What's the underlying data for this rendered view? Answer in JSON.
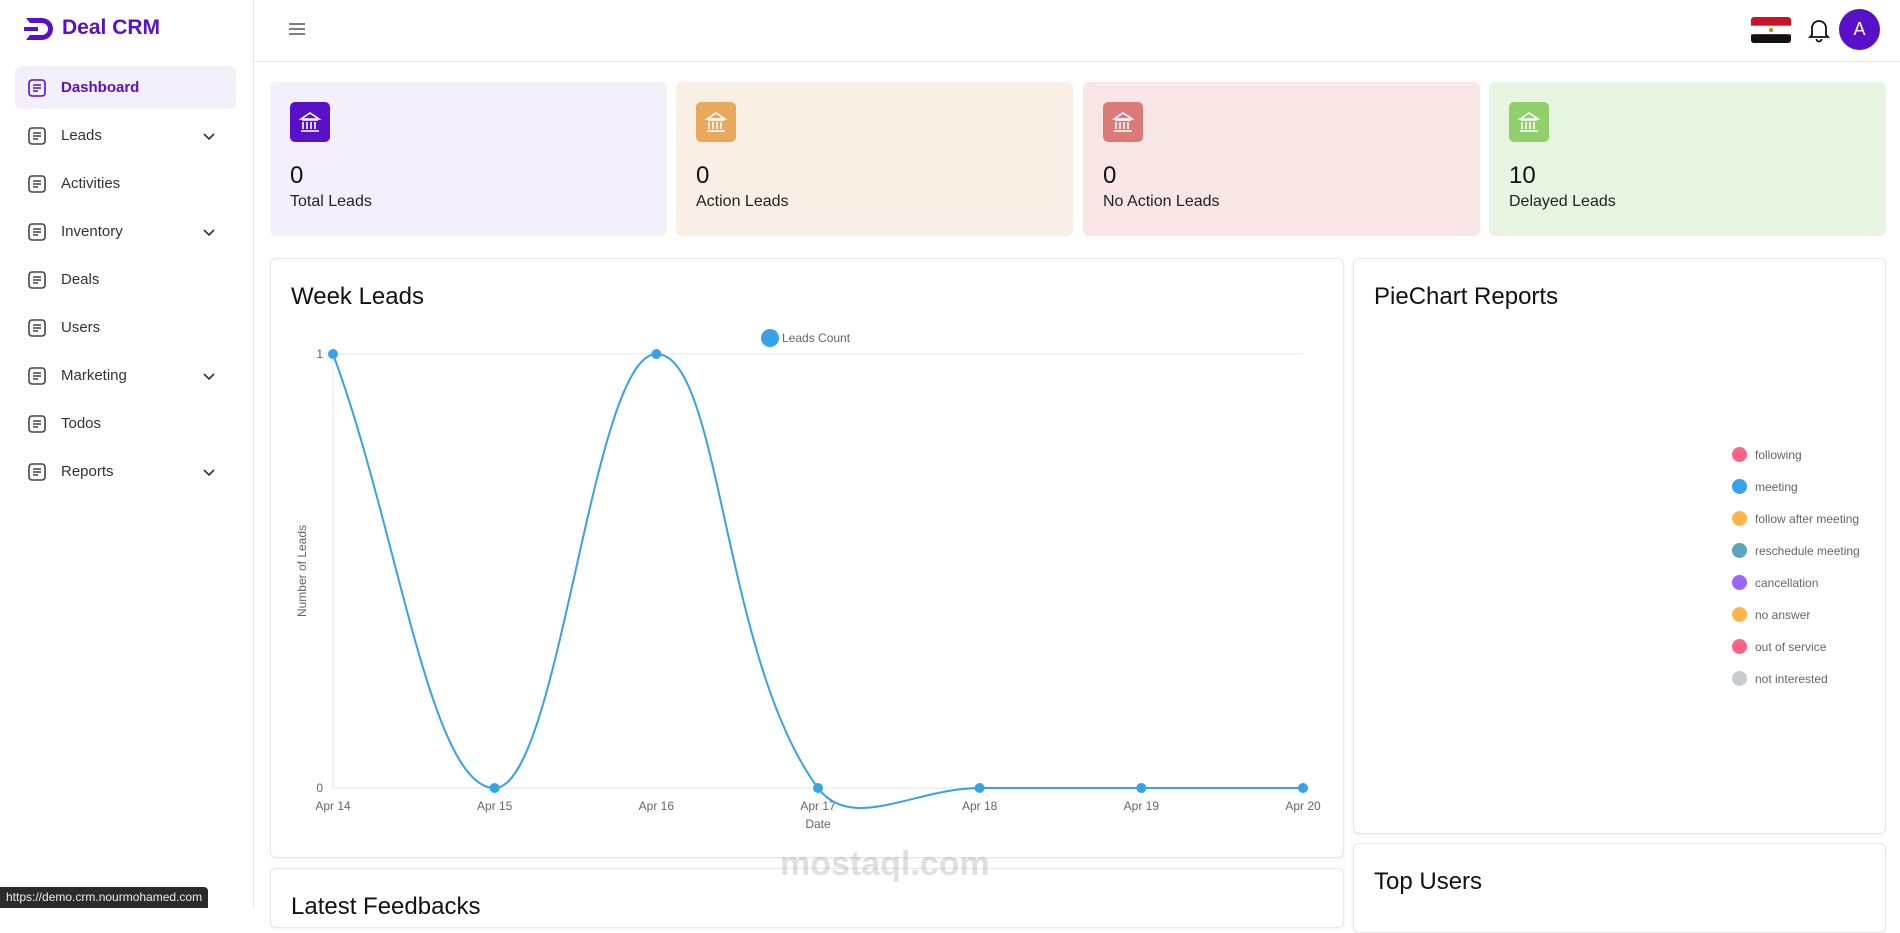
{
  "brand": "Deal CRM",
  "nav": [
    {
      "label": "Dashboard",
      "active": true,
      "expandable": false
    },
    {
      "label": "Leads",
      "active": false,
      "expandable": true
    },
    {
      "label": "Activities",
      "active": false,
      "expandable": false
    },
    {
      "label": "Inventory",
      "active": false,
      "expandable": true
    },
    {
      "label": "Deals",
      "active": false,
      "expandable": false
    },
    {
      "label": "Users",
      "active": false,
      "expandable": false
    },
    {
      "label": "Marketing",
      "active": false,
      "expandable": true
    },
    {
      "label": "Todos",
      "active": false,
      "expandable": false
    },
    {
      "label": "Reports",
      "active": false,
      "expandable": true
    }
  ],
  "header": {
    "avatar": "A"
  },
  "stats": [
    {
      "value": "0",
      "label": "Total Leads",
      "bg": "#f3f0fb",
      "icon_color": "#5a0fc8"
    },
    {
      "value": "0",
      "label": "Action Leads",
      "bg": "#f9efe5",
      "icon_color": "#e9a95d"
    },
    {
      "value": "0",
      "label": "No Action Leads",
      "bg": "#f8e6e6",
      "icon_color": "#dc7a77"
    },
    {
      "value": "10",
      "label": "Delayed Leads",
      "bg": "#e6f4e0",
      "icon_color": "#8fd06a"
    }
  ],
  "chart_data": {
    "type": "line",
    "title": "Week Leads",
    "x_label": "Date",
    "y_label": "Number of Leads",
    "categories": [
      "Apr 14",
      "Apr 15",
      "Apr 16",
      "Apr 17",
      "Apr 18",
      "Apr 19",
      "Apr 20"
    ],
    "series": [
      {
        "name": "Leads Count",
        "color": "#36a2eb",
        "values": [
          1,
          0,
          1,
          0,
          0,
          0,
          0
        ]
      }
    ],
    "ylim": [
      0,
      1
    ],
    "yticks": [
      0,
      1
    ],
    "grid": true,
    "legend": "top"
  },
  "pie": {
    "title": "PieChart Reports",
    "legend": [
      {
        "name": "following",
        "color": "#ff6384"
      },
      {
        "name": "meeting",
        "color": "#36a2eb"
      },
      {
        "name": "follow after meeting",
        "color": "#ffb547"
      },
      {
        "name": "reschedule meeting",
        "color": "#5ba3c0"
      },
      {
        "name": "cancellation",
        "color": "#9966ff"
      },
      {
        "name": "no answer",
        "color": "#ffb547"
      },
      {
        "name": "out of service",
        "color": "#ff6384"
      },
      {
        "name": "not interested",
        "color": "#c9cbcf"
      }
    ]
  },
  "feedbacks": {
    "title": "Latest Feedbacks"
  },
  "top_users": {
    "title": "Top Users"
  },
  "status_url": "https://demo.crm.nourmohamed.com",
  "watermark": "mostaql.com"
}
